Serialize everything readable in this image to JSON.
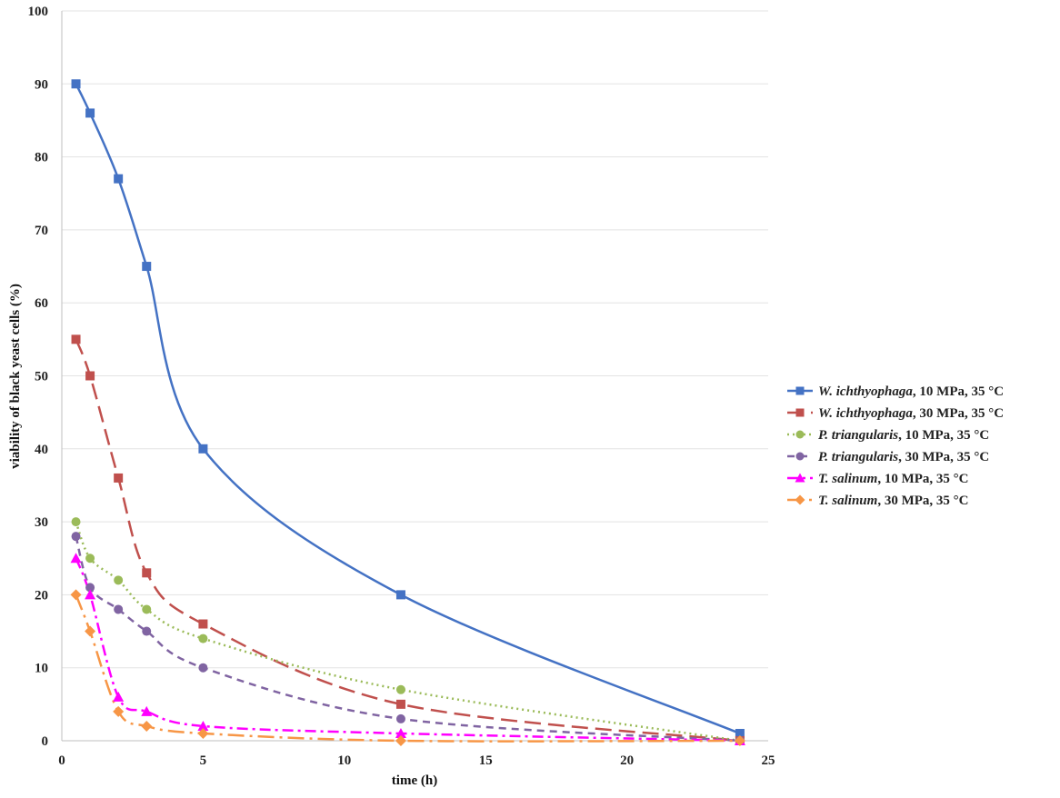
{
  "chart_data": {
    "type": "line",
    "title": "",
    "xlabel": "time (h)",
    "ylabel": "viability of black yeast cells (%)",
    "xlim": [
      0,
      25
    ],
    "ylim": [
      0,
      100
    ],
    "x_ticks": [
      0,
      5,
      10,
      15,
      20,
      25
    ],
    "y_ticks": [
      0,
      10,
      20,
      30,
      40,
      50,
      60,
      70,
      80,
      90,
      100
    ],
    "grid": true,
    "legend_position": "right",
    "series": [
      {
        "name": "W. ichthyophaga, 10 MPa, 35 °C",
        "name_italic": "W. ichthyophaga",
        "name_rest": ", 10 MPa, 35 °C",
        "color": "#4472C4",
        "marker": "square",
        "dash": "solid",
        "x": [
          0.5,
          1,
          2,
          3,
          5,
          12,
          24
        ],
        "y": [
          90,
          86,
          77,
          65,
          40,
          20,
          1
        ]
      },
      {
        "name": "W. ichthyophaga, 30 MPa, 35 °C",
        "name_italic": "W. ichthyophaga",
        "name_rest": ",  30 MPa, 35 °C",
        "color": "#C0504D",
        "marker": "square",
        "dash": "long-dash",
        "x": [
          0.5,
          1,
          2,
          3,
          5,
          12,
          24
        ],
        "y": [
          55,
          50,
          36,
          23,
          16,
          5,
          0
        ]
      },
      {
        "name": "P. triangularis, 10 MPa, 35 °C",
        "name_italic": "P. triangularis",
        "name_rest": ",  10 MPa, 35 °C",
        "color": "#9BBB59",
        "marker": "circle",
        "dash": "dotted",
        "x": [
          0.5,
          1,
          2,
          3,
          5,
          12,
          24
        ],
        "y": [
          30,
          25,
          22,
          18,
          14,
          7,
          0
        ]
      },
      {
        "name": "P. triangularis, 30 MPa, 35 °C",
        "name_italic": "P. triangularis",
        "name_rest": ",  30 MPa, 35 °C",
        "color": "#8064A2",
        "marker": "circle",
        "dash": "dashed",
        "x": [
          0.5,
          1,
          2,
          3,
          5,
          12,
          24
        ],
        "y": [
          28,
          21,
          18,
          15,
          10,
          3,
          0
        ]
      },
      {
        "name": "T. salinum, 10 MPa, 35 °C",
        "name_italic": "T. salinum",
        "name_rest": ",  10 MPa, 35 °C",
        "color": "#FF00FF",
        "marker": "triangle",
        "dash": "dash-dot",
        "x": [
          0.5,
          1,
          2,
          3,
          5,
          12,
          24
        ],
        "y": [
          25,
          20,
          6,
          4,
          2,
          1,
          0
        ]
      },
      {
        "name": "T. salinum, 30 MPa, 35 °C",
        "name_italic": "T. salinum",
        "name_rest": ",  30 MPa, 35 °C",
        "color": "#F79646",
        "marker": "diamond",
        "dash": "long-dash-dot",
        "x": [
          0.5,
          1,
          2,
          3,
          5,
          12,
          24
        ],
        "y": [
          20,
          15,
          4,
          2,
          1,
          0,
          0
        ]
      }
    ]
  }
}
